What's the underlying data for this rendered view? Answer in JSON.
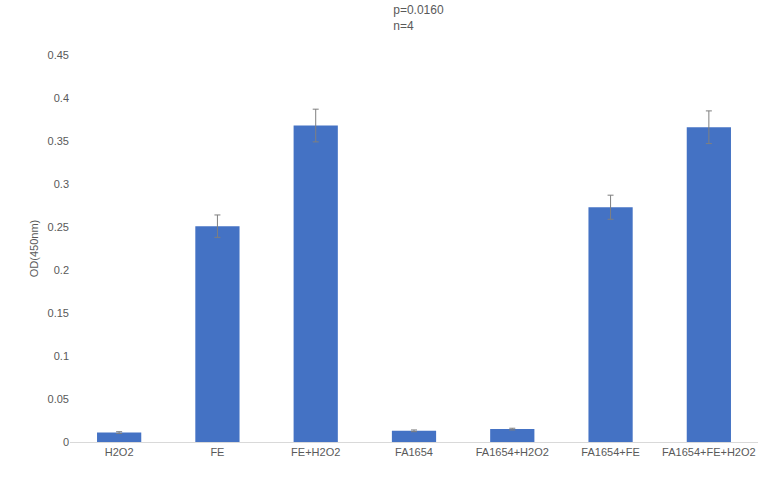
{
  "chart_data": {
    "type": "bar",
    "title": "p=0.0160\nn=4",
    "y_label": "OD(450nm)",
    "categories": [
      "H2O2",
      "FE",
      "FE+H2O2",
      "FA1654",
      "FA1654+H2O2",
      "FA1654+FE",
      "FA1654+FE+H2O2"
    ],
    "values": [
      0.011,
      0.251,
      0.368,
      0.013,
      0.015,
      0.273,
      0.366
    ],
    "errors": [
      0.001,
      0.013,
      0.019,
      0.001,
      0.001,
      0.014,
      0.019
    ],
    "color": "#4472c4",
    "ylim": [
      0,
      0.45
    ],
    "yticks": [
      0,
      0.05,
      0.1,
      0.15,
      0.2,
      0.25,
      0.3,
      0.35,
      0.4,
      0.45
    ],
    "grid": false
  }
}
